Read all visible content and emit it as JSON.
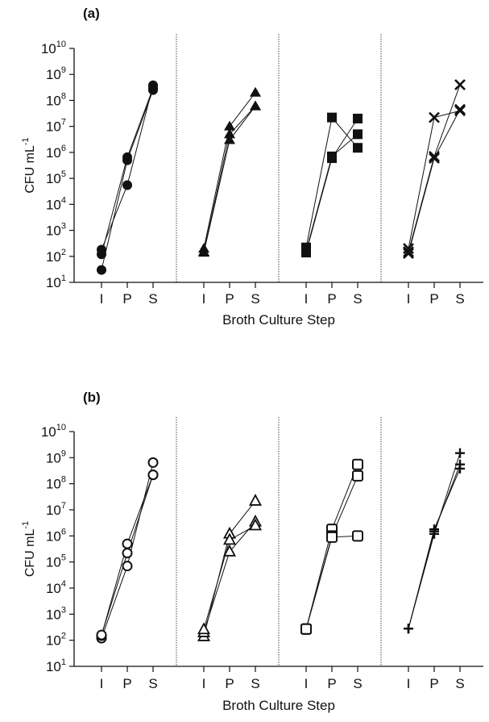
{
  "figure": {
    "shared_xlabel": "Broth Culture Step",
    "shared_ylabel_main": "CFU mL",
    "shared_ylabel_exp": "-1"
  },
  "chart_data": [
    {
      "panel_label": "(a)",
      "type": "scatter",
      "title": "",
      "xlabel": "Broth Culture Step",
      "ylabel": "CFU mL-1",
      "yscale": "log",
      "ylim": [
        10,
        10000000000
      ],
      "ytick_base": "10",
      "ytick_exponents": [
        "1",
        "2",
        "3",
        "4",
        "5",
        "6",
        "7",
        "8",
        "9",
        "10"
      ],
      "categories": [
        "I",
        "P",
        "S"
      ],
      "grid": false,
      "subpanels": [
        {
          "marker": "filled-circle",
          "series": [
            {
              "values": [
                30,
                500000,
                250000000
              ]
            },
            {
              "values": [
                120,
                650000,
                300000000
              ]
            },
            {
              "values": [
                180,
                55000,
                380000000
              ]
            }
          ]
        },
        {
          "marker": "filled-triangle",
          "series": [
            {
              "values": [
                200,
                10000000,
                200000000
              ]
            },
            {
              "values": [
                150,
                5000000,
                60000000
              ]
            },
            {
              "values": [
                140,
                3000000,
                60000000
              ]
            }
          ]
        },
        {
          "marker": "filled-square",
          "series": [
            {
              "values": [
                220,
                22000000,
                1500000
              ]
            },
            {
              "values": [
                160,
                700000,
                5000000
              ]
            },
            {
              "values": [
                140,
                600000,
                20000000
              ]
            }
          ]
        },
        {
          "marker": "x-cross",
          "series": [
            {
              "values": [
                200,
                22000000,
                40000000
              ]
            },
            {
              "values": [
                150,
                700000,
                400000000
              ]
            },
            {
              "values": [
                130,
                600000,
                45000000
              ]
            }
          ]
        }
      ]
    },
    {
      "panel_label": "(b)",
      "type": "scatter",
      "title": "",
      "xlabel": "Broth Culture Step",
      "ylabel": "CFU mL-1",
      "yscale": "log",
      "ylim": [
        10,
        10000000000
      ],
      "ytick_base": "10",
      "ytick_exponents": [
        "1",
        "2",
        "3",
        "4",
        "5",
        "6",
        "7",
        "8",
        "9",
        "10"
      ],
      "categories": [
        "I",
        "P",
        "S"
      ],
      "grid": false,
      "subpanels": [
        {
          "marker": "open-circle",
          "series": [
            {
              "values": [
                120,
                70000,
                650000000
              ]
            },
            {
              "values": [
                150,
                500000,
                220000000
              ]
            },
            {
              "values": [
                160,
                220000,
                220000000
              ]
            }
          ]
        },
        {
          "marker": "open-triangle",
          "series": [
            {
              "values": [
                140,
                1200000,
                22000000
              ]
            },
            {
              "values": [
                200,
                250000,
                3500000
              ]
            },
            {
              "values": [
                260,
                700000,
                2500000
              ]
            }
          ]
        },
        {
          "marker": "open-square",
          "series": [
            {
              "values": [
                270,
                1800000,
                550000000
              ]
            },
            {
              "values": [
                270,
                1000000,
                200000000
              ]
            },
            {
              "values": [
                270,
                900000,
                1000000
              ]
            }
          ]
        },
        {
          "marker": "plus",
          "series": [
            {
              "values": [
                280,
                1200000,
                1500000000
              ]
            },
            {
              "values": [
                280,
                1500000,
                550000000
              ]
            },
            {
              "values": [
                280,
                1800000,
                380000000
              ]
            }
          ]
        }
      ]
    }
  ]
}
